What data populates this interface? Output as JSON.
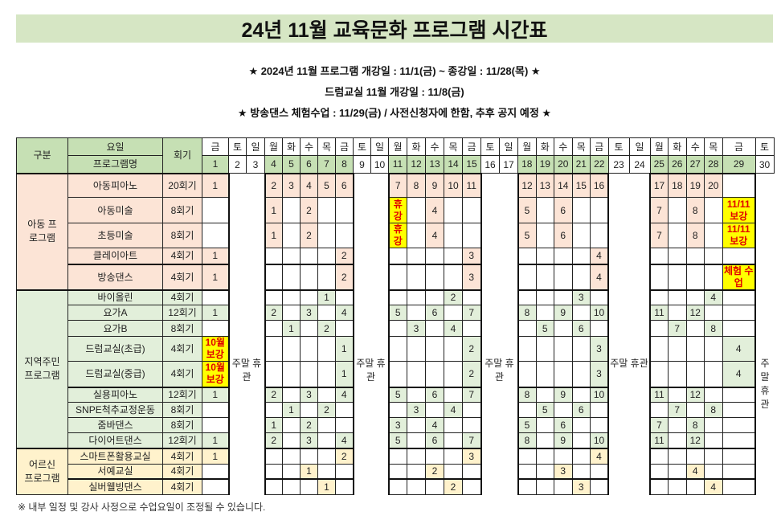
{
  "title": "24년 11월 교육문화 프로그램 시간표",
  "notices": [
    "★ 2024년 11월 프로그램 개강일 : 11/1(금) ~ 종강일 : 11/28(목) ★",
    "드럼교실 11월 개강일 : 11/8(금)",
    "★ 방송댄스 체험수업 : 11/29(금) / 사전신청자에 한함, 추후 공지 예정 ★"
  ],
  "table": {
    "header": {
      "category": "구분",
      "weekday": "요일",
      "program": "프로그램명",
      "sessions": "회기"
    },
    "days": [
      {
        "d": "1",
        "w": "금"
      },
      {
        "d": "2",
        "w": "토"
      },
      {
        "d": "3",
        "w": "일"
      },
      {
        "d": "4",
        "w": "월"
      },
      {
        "d": "5",
        "w": "화"
      },
      {
        "d": "6",
        "w": "수"
      },
      {
        "d": "7",
        "w": "목"
      },
      {
        "d": "8",
        "w": "금"
      },
      {
        "d": "9",
        "w": "토"
      },
      {
        "d": "10",
        "w": "일"
      },
      {
        "d": "11",
        "w": "월"
      },
      {
        "d": "12",
        "w": "화"
      },
      {
        "d": "13",
        "w": "수"
      },
      {
        "d": "14",
        "w": "목"
      },
      {
        "d": "15",
        "w": "금"
      },
      {
        "d": "16",
        "w": "토"
      },
      {
        "d": "17",
        "w": "일"
      },
      {
        "d": "18",
        "w": "월"
      },
      {
        "d": "19",
        "w": "화"
      },
      {
        "d": "20",
        "w": "수"
      },
      {
        "d": "21",
        "w": "목"
      },
      {
        "d": "22",
        "w": "금"
      },
      {
        "d": "23",
        "w": "토"
      },
      {
        "d": "24",
        "w": "일"
      },
      {
        "d": "25",
        "w": "월"
      },
      {
        "d": "26",
        "w": "화"
      },
      {
        "d": "27",
        "w": "수"
      },
      {
        "d": "28",
        "w": "목"
      },
      {
        "d": "29",
        "w": "금"
      },
      {
        "d": "30",
        "w": "토"
      }
    ],
    "weekend_label": "주말 휴관",
    "categories": [
      {
        "label": "아동 프로그램",
        "color": "#fce4d6",
        "programs": [
          {
            "name": "아동피아노",
            "sessions": "20회기",
            "cells": {
              "1": "1",
              "4": "2",
              "5": "3",
              "6": "4",
              "7": "5",
              "8": "6",
              "11": "7",
              "12": "8",
              "13": "9",
              "14": "10",
              "15": "11",
              "18": "12",
              "19": "13",
              "20": "14",
              "21": "15",
              "22": "16",
              "25": "17",
              "26": "18",
              "27": "19",
              "28": "20"
            }
          },
          {
            "name": "아동미술",
            "sessions": "8회기",
            "cells": {
              "4": "1",
              "6": "2",
              "11": "휴강",
              "13": "4",
              "18": "5",
              "20": "6",
              "25": "7",
              "27": "8",
              "29": "11/11 보강"
            }
          },
          {
            "name": "초등미술",
            "sessions": "8회기",
            "cells": {
              "4": "1",
              "6": "2",
              "11": "휴강",
              "13": "4",
              "18": "5",
              "20": "6",
              "25": "7",
              "27": "8",
              "29": "11/11 보강"
            }
          },
          {
            "name": "클레이아트",
            "sessions": "4회기",
            "cells": {
              "1": "1",
              "8": "2",
              "15": "3",
              "22": "4"
            }
          },
          {
            "name": "방송댄스",
            "sessions": "4회기",
            "cells": {
              "1": "1",
              "8": "2",
              "15": "3",
              "22": "4",
              "29": "체험 수업"
            }
          }
        ]
      },
      {
        "label": "지역주민 프로그램",
        "color": "#e2efda",
        "programs": [
          {
            "name": "바이올린",
            "sessions": "4회기",
            "cells": {
              "7": "1",
              "14": "2",
              "21": "3",
              "28": "4"
            }
          },
          {
            "name": "요가A",
            "sessions": "12회기",
            "cells": {
              "1": "1",
              "4": "2",
              "6": "3",
              "8": "4",
              "11": "5",
              "13": "6",
              "15": "7",
              "18": "8",
              "20": "9",
              "22": "10",
              "25": "11",
              "27": "12"
            }
          },
          {
            "name": "요가B",
            "sessions": "8회기",
            "cells": {
              "5": "1",
              "7": "2",
              "12": "3",
              "14": "4",
              "19": "5",
              "21": "6",
              "26": "7",
              "28": "8"
            }
          },
          {
            "name": "드럼교실(초급)",
            "sessions": "4회기",
            "cells": {
              "1": "10월 보강",
              "8": "1",
              "15": "2",
              "22": "3",
              "29": "4"
            }
          },
          {
            "name": "드럼교실(중급)",
            "sessions": "4회기",
            "cells": {
              "1": "10월 보강",
              "8": "1",
              "15": "2",
              "22": "3",
              "29": "4"
            }
          },
          {
            "name": "실용피아노",
            "sessions": "12회기",
            "cells": {
              "1": "1",
              "4": "2",
              "6": "3",
              "8": "4",
              "11": "5",
              "13": "6",
              "15": "7",
              "18": "8",
              "20": "9",
              "22": "10",
              "25": "11",
              "27": "12"
            }
          },
          {
            "name": "SNPE척추교정운동",
            "sessions": "8회기",
            "cells": {
              "5": "1",
              "7": "2",
              "12": "3",
              "14": "4",
              "19": "5",
              "21": "6",
              "26": "7",
              "28": "8"
            }
          },
          {
            "name": "줌바댄스",
            "sessions": "8회기",
            "cells": {
              "4": "1",
              "6": "2",
              "11": "3",
              "13": "4",
              "18": "5",
              "20": "6",
              "25": "7",
              "27": "8"
            }
          },
          {
            "name": "다이어트댄스",
            "sessions": "12회기",
            "cells": {
              "1": "1",
              "4": "2",
              "6": "3",
              "8": "4",
              "11": "5",
              "13": "6",
              "15": "7",
              "18": "8",
              "20": "9",
              "22": "10",
              "25": "11",
              "27": "12"
            }
          }
        ]
      },
      {
        "label": "어르신 프로그램",
        "color": "#fff2cc",
        "programs": [
          {
            "name": "스마트폰활용교실",
            "sessions": "4회기",
            "cells": {
              "1": "1",
              "8": "2",
              "15": "3",
              "22": "4"
            }
          },
          {
            "name": "서예교실",
            "sessions": "4회기",
            "cells": {
              "6": "1",
              "13": "2",
              "20": "3",
              "27": "4"
            }
          },
          {
            "name": "실버웰빙댄스",
            "sessions": "4회기",
            "cells": {
              "7": "1",
              "14": "2",
              "21": "3",
              "28": "4"
            }
          }
        ]
      }
    ]
  },
  "footer": "※ 내부 일정 및 강사 사정으로 수업요일이 조정될 수 있습니다.",
  "colors": {
    "title_bg": "#d6e6c4",
    "header_green": "#c6e0b4",
    "highlight": "#ffff00",
    "highlight_text": "#e00000"
  }
}
